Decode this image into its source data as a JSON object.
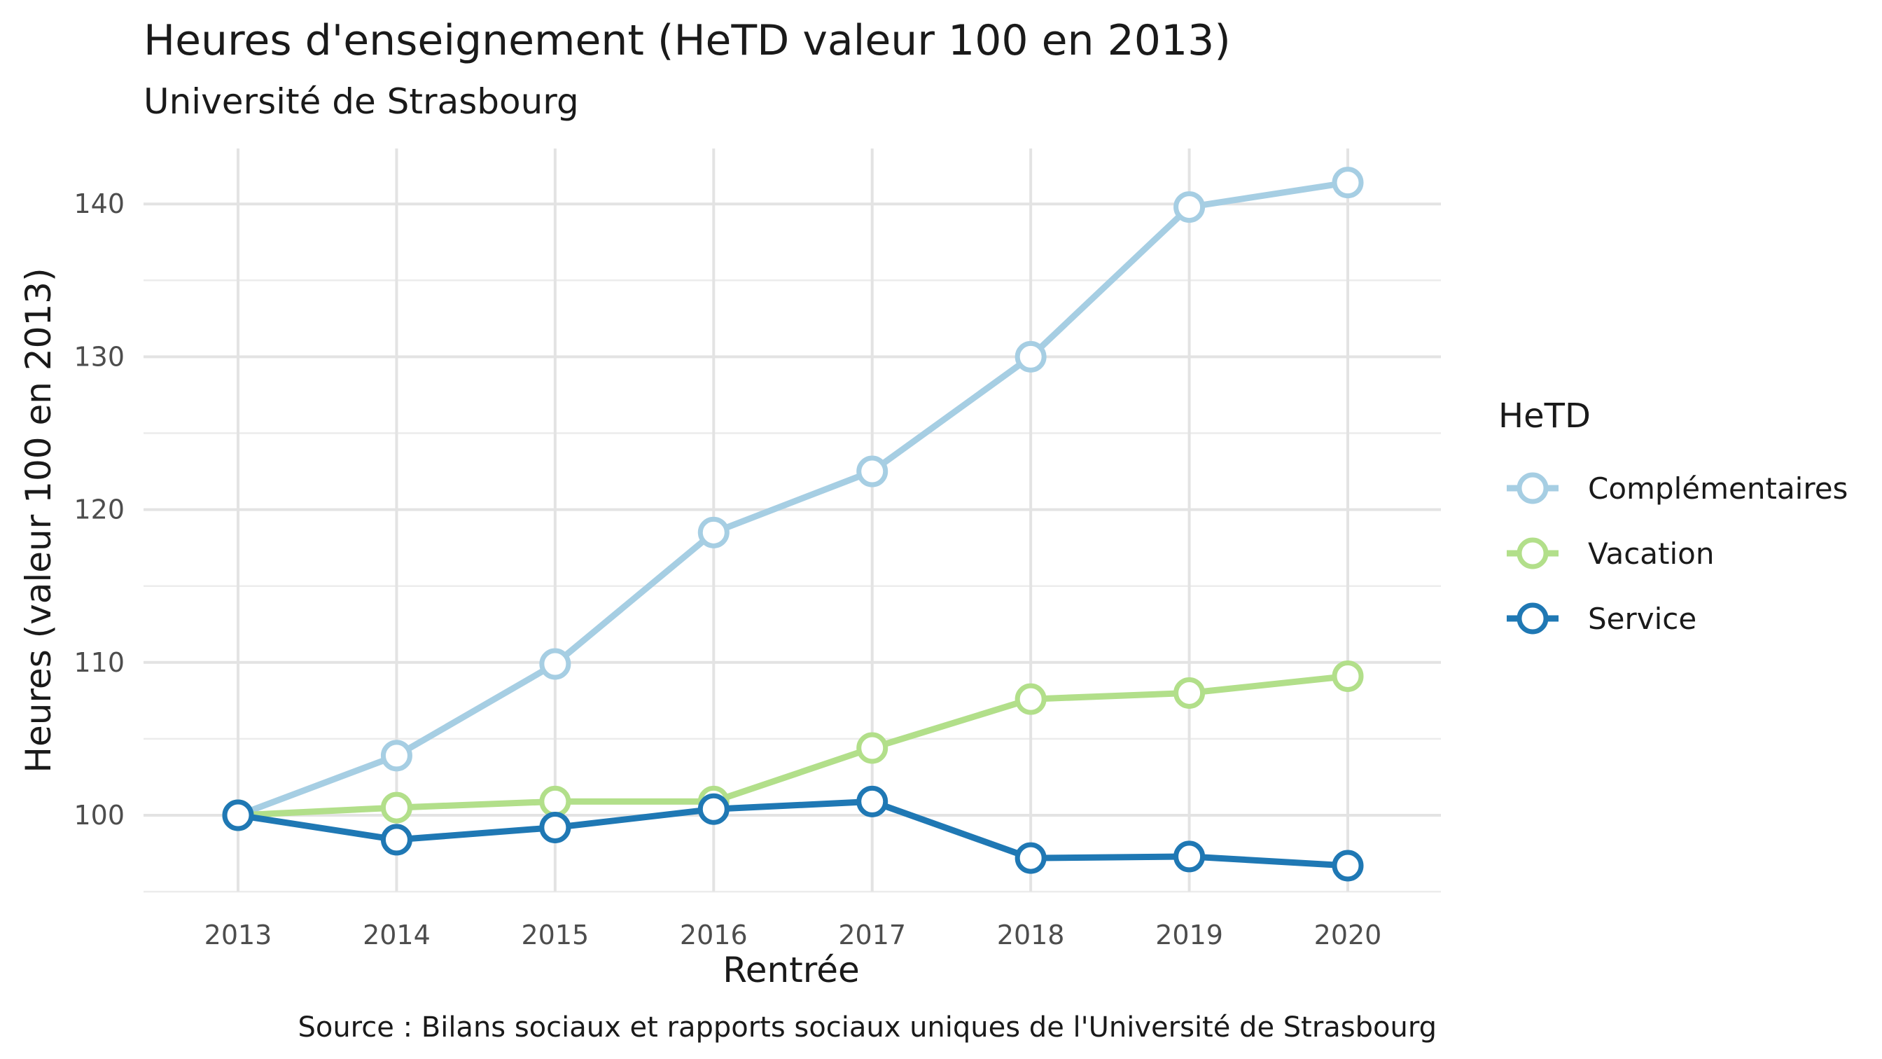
{
  "chart_data": {
    "type": "line",
    "title": "Heures d'enseignement (HeTD valeur 100 en 2013)",
    "subtitle": "Université de Strasbourg",
    "xlabel": "Rentrée",
    "ylabel": "Heures (valeur 100 en 2013)",
    "caption": "Source : Bilans sociaux et rapports sociaux uniques de l'Université de Strasbourg",
    "x": [
      "2013",
      "2014",
      "2015",
      "2016",
      "2017",
      "2018",
      "2019",
      "2020"
    ],
    "ylim": [
      95,
      143
    ],
    "yticks": [
      "100",
      "110",
      "120",
      "130",
      "140"
    ],
    "grid": true,
    "legend": {
      "title": "HeTD",
      "position": "right",
      "entries": [
        "Complémentaires",
        "Vacation",
        "Service"
      ]
    },
    "series": [
      {
        "name": "Complémentaires",
        "color": "#a6cee3",
        "values": [
          100,
          103.9,
          109.9,
          118.5,
          122.5,
          130.0,
          139.8,
          141.4
        ]
      },
      {
        "name": "Vacation",
        "color": "#b2df8a",
        "values": [
          100,
          100.5,
          100.9,
          100.9,
          104.4,
          107.6,
          108.0,
          109.1
        ]
      },
      {
        "name": "Service",
        "color": "#1f78b4",
        "values": [
          100,
          98.4,
          99.2,
          100.4,
          100.9,
          97.2,
          97.3,
          96.7
        ]
      }
    ]
  }
}
